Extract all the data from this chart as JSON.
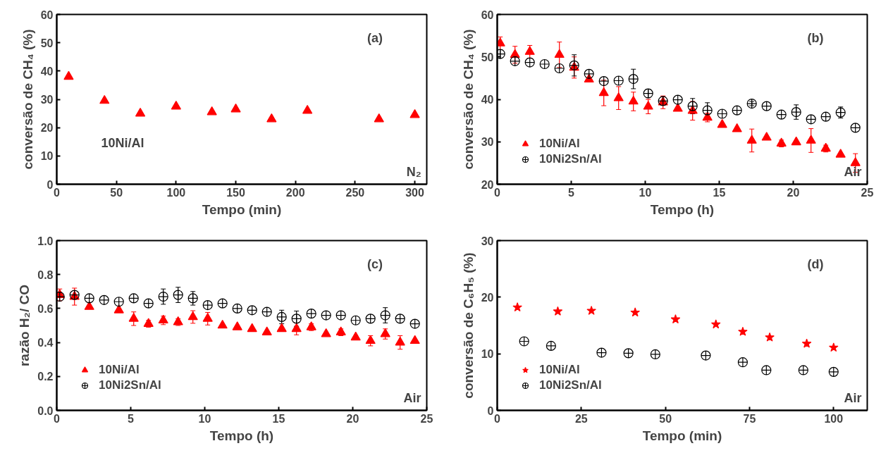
{
  "chart_data": [
    {
      "type": "scatter",
      "xlabel": "Tempo (min)",
      "ylabel": "conversão de CH₄ (%)",
      "annotations": [
        "(a)",
        "10Ni/Al",
        "N₂"
      ],
      "xlim": [
        0,
        310
      ],
      "xticks": [
        0,
        50,
        100,
        150,
        200,
        250,
        300
      ],
      "ylim": [
        0,
        60
      ],
      "yticks": [
        0,
        10,
        20,
        30,
        40,
        50,
        60
      ],
      "grid": false,
      "legend": false,
      "series": [
        {
          "color": "#ff0000",
          "marker": "triangle",
          "x": [
            10,
            40,
            70,
            100,
            130,
            150,
            180,
            210,
            270,
            300
          ],
          "values": [
            38,
            29.5,
            25,
            27.5,
            25.5,
            26.5,
            23,
            26,
            23,
            24.5
          ]
        }
      ]
    },
    {
      "type": "scatter",
      "xlabel": "Tempo (h)",
      "ylabel": "conversão de CH₄ (%)",
      "annotations": [
        "(b)",
        "Air"
      ],
      "xlim": [
        0,
        25
      ],
      "xticks": [
        0,
        5,
        10,
        15,
        20,
        25
      ],
      "ylim": [
        20,
        60
      ],
      "yticks": [
        20,
        30,
        40,
        50,
        60
      ],
      "grid": false,
      "legend": "bottom left",
      "series": [
        {
          "name": "10Ni/Al",
          "color": "#ff0000",
          "marker": "triangle",
          "x": [
            0.2,
            1.2,
            2.2,
            4.2,
            5.2,
            6.2,
            7.2,
            8.2,
            9.2,
            10.2,
            11.2,
            12.2,
            13.2,
            14.2,
            15.2,
            16.2,
            17.2,
            18.2,
            19.2,
            20.2,
            21.2,
            22.2,
            23.2,
            24.2
          ],
          "values": [
            53.2,
            50.5,
            51.2,
            50.5,
            47.5,
            44.7,
            41.5,
            40.3,
            39.5,
            38.3,
            39.3,
            37.8,
            37.3,
            35.7,
            34.0,
            33.0,
            30.3,
            31.0,
            29.6,
            29.9,
            30.3,
            28.4,
            27.0,
            25.0
          ],
          "errors": [
            1.5,
            2,
            1.5,
            3,
            2.5,
            null,
            3,
            2.7,
            2.2,
            1.7,
            1.5,
            null,
            2.2,
            1,
            null,
            null,
            2.7,
            null,
            0.8,
            null,
            2.8,
            0.8,
            null,
            2.2
          ]
        },
        {
          "name": "10Ni2Sn/Al",
          "color": "#000000",
          "marker": "circle",
          "x": [
            0.2,
            1.2,
            2.2,
            3.2,
            4.2,
            5.2,
            6.2,
            7.2,
            8.2,
            9.2,
            10.2,
            11.2,
            12.2,
            13.2,
            14.2,
            15.2,
            16.2,
            17.2,
            18.2,
            19.2,
            20.2,
            21.2,
            22.2,
            23.2,
            24.2
          ],
          "values": [
            50.7,
            49.0,
            48.7,
            48.3,
            47.3,
            48.0,
            46.0,
            44.3,
            44.4,
            44.8,
            41.4,
            39.6,
            39.9,
            38.4,
            37.4,
            36.6,
            37.4,
            39.0,
            38.4,
            36.4,
            37.0,
            35.3,
            35.9,
            36.9,
            33.3
          ],
          "errors": [
            1,
            null,
            null,
            null,
            null,
            2.5,
            null,
            null,
            null,
            2.3,
            1,
            1,
            null,
            1.8,
            1.8,
            null,
            null,
            0.5,
            null,
            null,
            1.7,
            null,
            null,
            1.3,
            null
          ]
        }
      ]
    },
    {
      "type": "scatter",
      "xlabel": "Tempo (h)",
      "ylabel": "razão H₂/ CO",
      "annotations": [
        "(c)",
        "Air"
      ],
      "xlim": [
        0,
        25
      ],
      "xticks": [
        0,
        5,
        10,
        15,
        20,
        25
      ],
      "ylim": [
        0,
        1
      ],
      "yticks": [
        {
          "value": 0,
          "label": "0.0"
        },
        0.2,
        0.4,
        0.6,
        0.8,
        {
          "value": 1,
          "label": "1.0"
        }
      ],
      "grid": false,
      "legend": "bottom left",
      "series": [
        {
          "name": "10Ni/Al",
          "color": "#ff0000",
          "marker": "triangle",
          "x": [
            0.2,
            1.2,
            2.2,
            4.2,
            5.2,
            6.2,
            7.2,
            8.2,
            9.2,
            10.2,
            11.2,
            12.2,
            13.2,
            14.2,
            15.2,
            16.2,
            17.2,
            18.2,
            19.2,
            20.2,
            21.2,
            22.2,
            23.2,
            24.2
          ],
          "values": [
            0.68,
            0.67,
            0.61,
            0.59,
            0.54,
            0.51,
            0.53,
            0.52,
            0.55,
            0.54,
            0.5,
            0.49,
            0.48,
            0.46,
            0.48,
            0.48,
            0.49,
            0.45,
            0.46,
            0.43,
            0.41,
            0.45,
            0.4,
            0.41
          ],
          "errors": [
            0.035,
            0.05,
            null,
            null,
            0.04,
            0.02,
            0.025,
            0.02,
            0.037,
            0.037,
            null,
            null,
            null,
            null,
            null,
            0.035,
            0.02,
            null,
            0.02,
            null,
            0.03,
            0.03,
            0.04,
            null
          ]
        },
        {
          "name": "10Ni2Sn/Al",
          "color": "#000000",
          "marker": "circle",
          "x": [
            0.2,
            1.2,
            2.2,
            3.2,
            4.2,
            5.2,
            6.2,
            7.2,
            8.2,
            9.2,
            10.2,
            11.2,
            12.2,
            13.2,
            14.2,
            15.2,
            16.2,
            17.2,
            18.2,
            19.2,
            20.2,
            21.2,
            22.2,
            23.2,
            24.2
          ],
          "values": [
            0.67,
            0.68,
            0.66,
            0.65,
            0.64,
            0.66,
            0.63,
            0.67,
            0.68,
            0.66,
            0.62,
            0.63,
            0.6,
            0.59,
            0.58,
            0.55,
            0.54,
            0.57,
            0.56,
            0.56,
            0.53,
            0.54,
            0.56,
            0.54,
            0.51
          ],
          "errors": [
            null,
            null,
            null,
            null,
            null,
            null,
            null,
            0.045,
            0.045,
            0.04,
            null,
            null,
            null,
            null,
            null,
            0.04,
            0.045,
            null,
            null,
            null,
            null,
            null,
            0.045,
            null,
            null
          ]
        }
      ]
    },
    {
      "type": "scatter",
      "xlabel": "Tempo (min)",
      "ylabel": "conversão de C₆H₅ (%)",
      "annotations": [
        "(d)",
        "Air"
      ],
      "xlim": [
        0,
        110
      ],
      "xticks": [
        0,
        25,
        50,
        75,
        100
      ],
      "ylim": [
        0,
        30
      ],
      "yticks": [
        0,
        10,
        20,
        30
      ],
      "grid": false,
      "legend": "bottom left",
      "series": [
        {
          "name": "10Ni/Al",
          "color": "#ff0000",
          "marker": "star",
          "x": [
            6,
            18,
            28,
            41,
            53,
            65,
            73,
            81,
            92,
            100
          ],
          "values": [
            18.2,
            17.5,
            17.6,
            17.3,
            16.1,
            15.2,
            13.9,
            12.9,
            11.8,
            11.1
          ]
        },
        {
          "name": "10Ni2Sn/Al",
          "color": "#000000",
          "marker": "circle",
          "x": [
            8,
            16,
            31,
            39,
            47,
            62,
            73,
            80,
            91,
            100
          ],
          "values": [
            12.2,
            11.4,
            10.2,
            10.1,
            9.9,
            9.7,
            8.5,
            7.1,
            7.1,
            6.8
          ]
        }
      ]
    }
  ]
}
